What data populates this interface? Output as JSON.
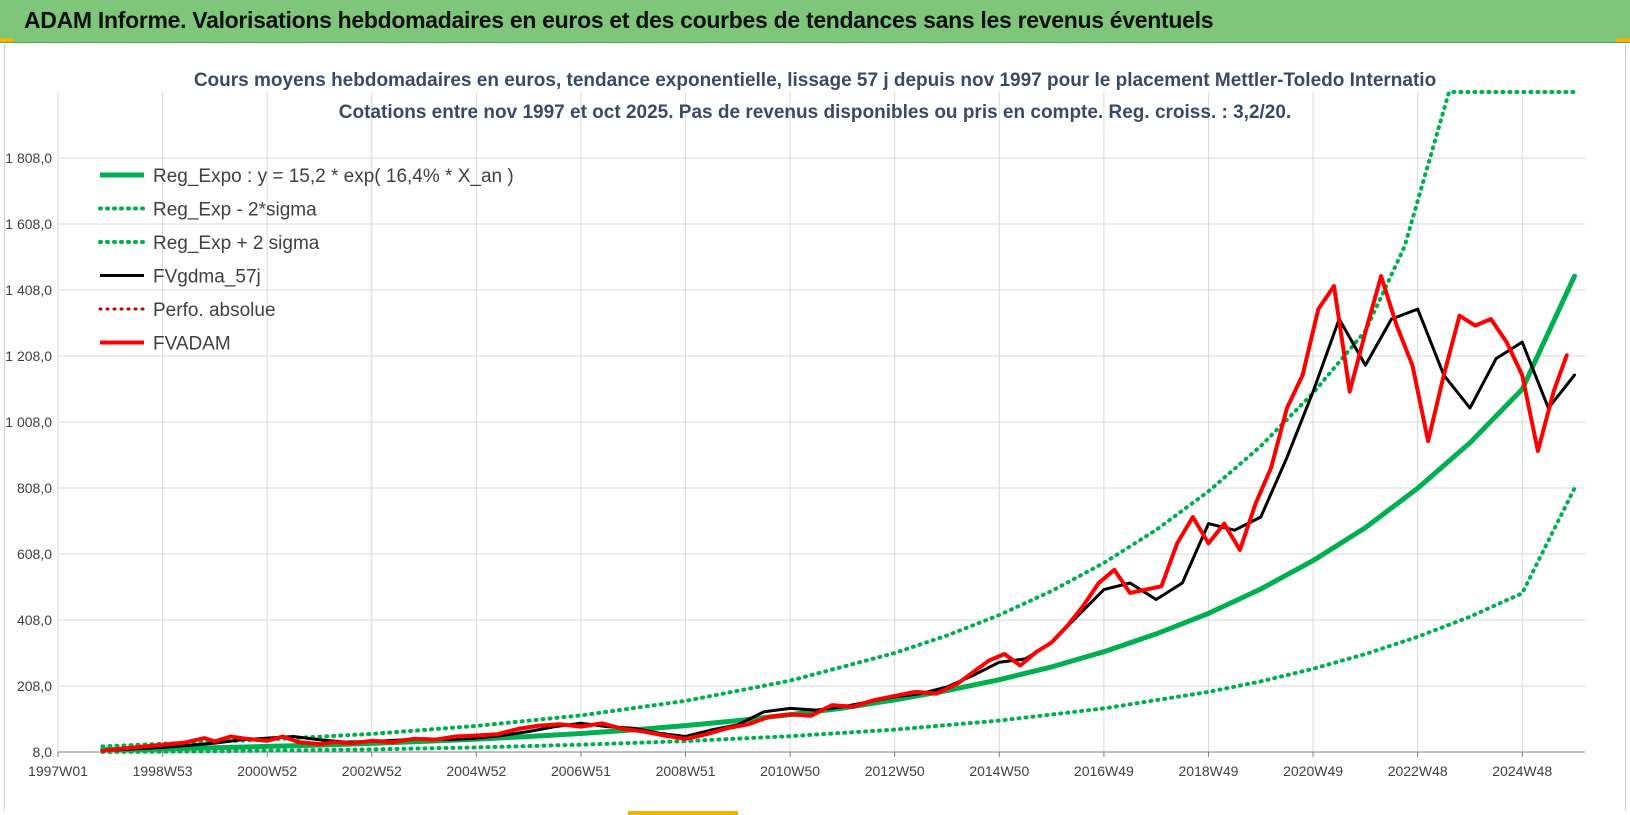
{
  "header": {
    "title": "ADAM Informe. Valorisations hebdomadaires en euros et des courbes de tendances sans les revenus éventuels"
  },
  "colors": {
    "header_bg": "#7dc67a",
    "trend": "#00b050",
    "gdma": "#000000",
    "adam": "#ff0000",
    "grid": "#d9d9d9"
  },
  "chart_data": {
    "type": "line",
    "title": "Cours moyens hebdomadaires en euros, tendance exponentielle, lissage 57 j depuis nov 1997 pour le placement Mettler-Toledo Internatio",
    "subtitle": "Cotations entre nov 1997 et oct 2025. Pas de revenus disponibles ou pris en compte. Reg. croiss. : 3,2/20.",
    "xlabel": "",
    "ylabel": "",
    "ylim": [
      8,
      2008
    ],
    "xlim": [
      1997.0,
      2026.2
    ],
    "grid": true,
    "legend_position": "top-left",
    "y_ticks": [
      "8,0",
      "208,0",
      "408,0",
      "608,0",
      "808,0",
      "1 008,0",
      "1 208,0",
      "1 408,0",
      "1 608,0",
      "1 808,0"
    ],
    "y_tick_values": [
      8,
      208,
      408,
      608,
      808,
      1008,
      1208,
      1408,
      1608,
      1808
    ],
    "x_ticks": [
      "1997W01",
      "1998W53",
      "2000W52",
      "2002W52",
      "2004W52",
      "2006W51",
      "2008W51",
      "2010W50",
      "2012W50",
      "2014W50",
      "2016W49",
      "2018W49",
      "2020W49",
      "2022W48",
      "2024W48"
    ],
    "x_tick_values": [
      1997.0,
      1999.0,
      2001.0,
      2003.0,
      2005.0,
      2007.0,
      2009.0,
      2011.0,
      2013.0,
      2015.0,
      2017.0,
      2019.0,
      2021.0,
      2023.0,
      2025.0
    ],
    "series": [
      {
        "name": "Reg_Expo : y = 15,2 * exp( 16,4% *  X_an )",
        "style": "solid",
        "color": "#00b050",
        "width": 5,
        "x": [
          1997.85,
          1999,
          2000,
          2001,
          2002,
          2003,
          2004,
          2005,
          2006,
          2007,
          2008,
          2009,
          2010,
          2011,
          2012,
          2013,
          2014,
          2015,
          2016,
          2017,
          2018,
          2019,
          2020,
          2021,
          2022,
          2023,
          2024,
          2025,
          2026
        ],
        "y": [
          15,
          18,
          21,
          25,
          29,
          34,
          40,
          47,
          55,
          64,
          75,
          88,
          103,
          121,
          141,
          166,
          194,
          227,
          266,
          312,
          366,
          428,
          502,
          588,
          688,
          807,
          945,
          1107,
          1450
        ]
      },
      {
        "name": "Reg_Exp - 2*sigma",
        "style": "dotted",
        "color": "#00b050",
        "width": 4,
        "x": [
          1997.85,
          1999,
          2001,
          2003,
          2005,
          2007,
          2009,
          2011,
          2013,
          2015,
          2017,
          2019,
          2020,
          2021,
          2022,
          2023,
          2024,
          2025,
          2026
        ],
        "y": [
          8,
          9,
          12,
          16,
          22,
          30,
          41,
          56,
          76,
          103,
          140,
          190,
          222,
          260,
          305,
          357,
          418,
          489,
          807
        ]
      },
      {
        "name": "Reg_Exp + 2 sigma",
        "style": "dotted",
        "color": "#00b050",
        "width": 4,
        "x": [
          1997.85,
          1999,
          2001,
          2003,
          2005,
          2007,
          2009,
          2011,
          2013,
          2014,
          2015,
          2016,
          2017,
          2018,
          2019,
          2020,
          2021,
          2022,
          2022.75,
          2023.6,
          2026
        ],
        "y": [
          25,
          33,
          46,
          63,
          87,
          119,
          163,
          224,
          308,
          361,
          423,
          496,
          581,
          681,
          798,
          935,
          1096,
          1284,
          1540,
          2008,
          2008
        ]
      },
      {
        "name": "FVgdma_57j",
        "style": "solid",
        "color": "#000000",
        "width": 3,
        "x": [
          1997.85,
          1998.5,
          1999,
          1999.5,
          2000,
          2000.5,
          2001,
          2001.5,
          2002,
          2002.5,
          2003,
          2003.5,
          2004,
          2004.5,
          2005,
          2005.5,
          2006,
          2006.5,
          2007,
          2007.5,
          2008,
          2008.5,
          2009,
          2009.5,
          2010,
          2010.5,
          2011,
          2011.5,
          2012,
          2012.5,
          2013,
          2013.5,
          2014,
          2014.5,
          2015,
          2015.5,
          2016,
          2016.5,
          2017,
          2017.5,
          2018,
          2018.5,
          2019,
          2019.5,
          2020,
          2020.5,
          2021,
          2021.5,
          2022,
          2022.5,
          2023,
          2023.5,
          2024,
          2024.5,
          2025,
          2025.5,
          2026
        ],
        "y": [
          12,
          18,
          22,
          28,
          35,
          45,
          50,
          55,
          45,
          38,
          40,
          44,
          48,
          46,
          50,
          58,
          70,
          85,
          95,
          85,
          80,
          65,
          55,
          75,
          90,
          130,
          140,
          135,
          145,
          160,
          175,
          185,
          205,
          240,
          280,
          290,
          340,
          420,
          500,
          520,
          470,
          520,
          700,
          680,
          720,
          900,
          1100,
          1320,
          1180,
          1320,
          1350,
          1150,
          1050,
          1200,
          1250,
          1050,
          1150
        ]
      },
      {
        "name": "Perfo. absolue",
        "style": "dotted",
        "color": "#c00000",
        "width": 3,
        "x": [],
        "y": []
      },
      {
        "name": "FVADAM",
        "style": "solid",
        "color": "#ff0000",
        "width": 4,
        "x": [
          1997.85,
          1998.2,
          1998.6,
          1999,
          1999.4,
          1999.8,
          2000,
          2000.3,
          2000.6,
          2001,
          2001.3,
          2001.6,
          2002,
          2002.3,
          2002.6,
          2003,
          2003.4,
          2003.8,
          2004.2,
          2004.6,
          2005,
          2005.4,
          2005.8,
          2006.2,
          2006.6,
          2007,
          2007.4,
          2007.8,
          2008.2,
          2008.6,
          2009,
          2009.4,
          2009.8,
          2010.2,
          2010.6,
          2011,
          2011.4,
          2011.8,
          2012.2,
          2012.6,
          2013,
          2013.4,
          2013.8,
          2014.2,
          2014.5,
          2014.8,
          2015.1,
          2015.4,
          2015.7,
          2016,
          2016.3,
          2016.6,
          2016.9,
          2017.2,
          2017.5,
          2017.8,
          2018.1,
          2018.4,
          2018.7,
          2019,
          2019.3,
          2019.6,
          2019.9,
          2020.2,
          2020.5,
          2020.8,
          2021.1,
          2021.4,
          2021.7,
          2022,
          2022.3,
          2022.6,
          2022.9,
          2023.2,
          2023.5,
          2023.8,
          2024.1,
          2024.4,
          2024.7,
          2025,
          2025.3,
          2025.6,
          2025.85
        ],
        "y": [
          12,
          18,
          24,
          30,
          36,
          50,
          40,
          55,
          48,
          42,
          55,
          38,
          32,
          38,
          34,
          42,
          38,
          48,
          45,
          55,
          58,
          62,
          78,
          88,
          92,
          85,
          95,
          78,
          70,
          58,
          48,
          62,
          80,
          92,
          115,
          122,
          118,
          150,
          145,
          165,
          178,
          190,
          185,
          215,
          250,
          285,
          305,
          270,
          310,
          340,
          390,
          450,
          520,
          560,
          490,
          500,
          510,
          640,
          720,
          640,
          700,
          620,
          760,
          870,
          1050,
          1150,
          1350,
          1420,
          1100,
          1280,
          1450,
          1300,
          1180,
          950,
          1150,
          1330,
          1300,
          1320,
          1250,
          1150,
          920,
          1100,
          1210
        ]
      }
    ]
  }
}
